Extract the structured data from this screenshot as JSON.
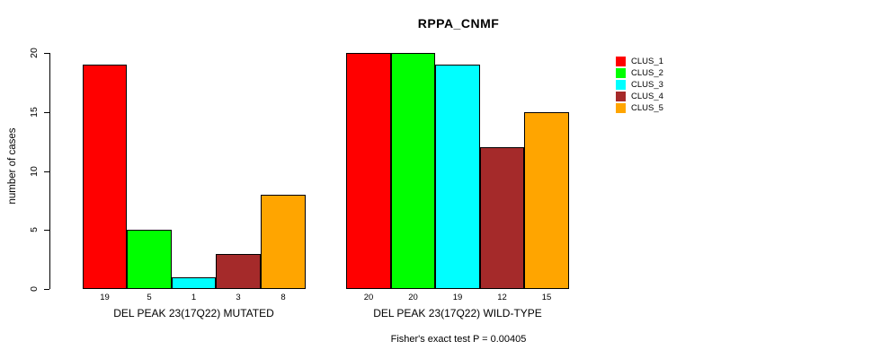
{
  "chart_data": {
    "type": "bar",
    "title": "RPPA_CNMF",
    "ylabel": "number of cases",
    "xlabel": "",
    "ylim": [
      0,
      20
    ],
    "yticks": [
      0,
      5,
      10,
      15,
      20
    ],
    "grid": false,
    "legend_position": "right-outside",
    "categories": [
      "DEL PEAK 23(17Q22) MUTATED",
      "DEL PEAK 23(17Q22) WILD-TYPE"
    ],
    "series": [
      {
        "name": "CLUS_1",
        "color": "#FF0000",
        "values": [
          19,
          20
        ]
      },
      {
        "name": "CLUS_2",
        "color": "#00FF00",
        "values": [
          5,
          20
        ]
      },
      {
        "name": "CLUS_3",
        "color": "#00FFFF",
        "values": [
          1,
          19
        ]
      },
      {
        "name": "CLUS_4",
        "color": "#A52A2A",
        "values": [
          3,
          12
        ]
      },
      {
        "name": "CLUS_5",
        "color": "#FFA500",
        "values": [
          8,
          15
        ]
      }
    ],
    "groups": [
      {
        "label": "DEL PEAK 23(17Q22) MUTATED",
        "values": [
          19,
          5,
          1,
          3,
          8
        ]
      },
      {
        "label": "DEL PEAK 23(17Q22) WILD-TYPE",
        "values": [
          20,
          20,
          19,
          12,
          15
        ]
      }
    ],
    "bar_value_labels": [
      [
        "19",
        "5",
        "1",
        "3",
        "8"
      ],
      [
        "20",
        "20",
        "19",
        "12",
        "15"
      ]
    ],
    "legend": [
      {
        "label": "CLUS_1",
        "color": "#FF0000"
      },
      {
        "label": "CLUS_2",
        "color": "#00FF00"
      },
      {
        "label": "CLUS_3",
        "color": "#00FFFF"
      },
      {
        "label": "CLUS_4",
        "color": "#A52A2A"
      },
      {
        "label": "CLUS_5",
        "color": "#FFA500"
      }
    ],
    "annotation": "Fisher's exact test P = 0.00405",
    "colors": {
      "background": "#FFFFFF",
      "axis": "#000000",
      "bar_border": "#000000",
      "text": "#000000"
    }
  }
}
